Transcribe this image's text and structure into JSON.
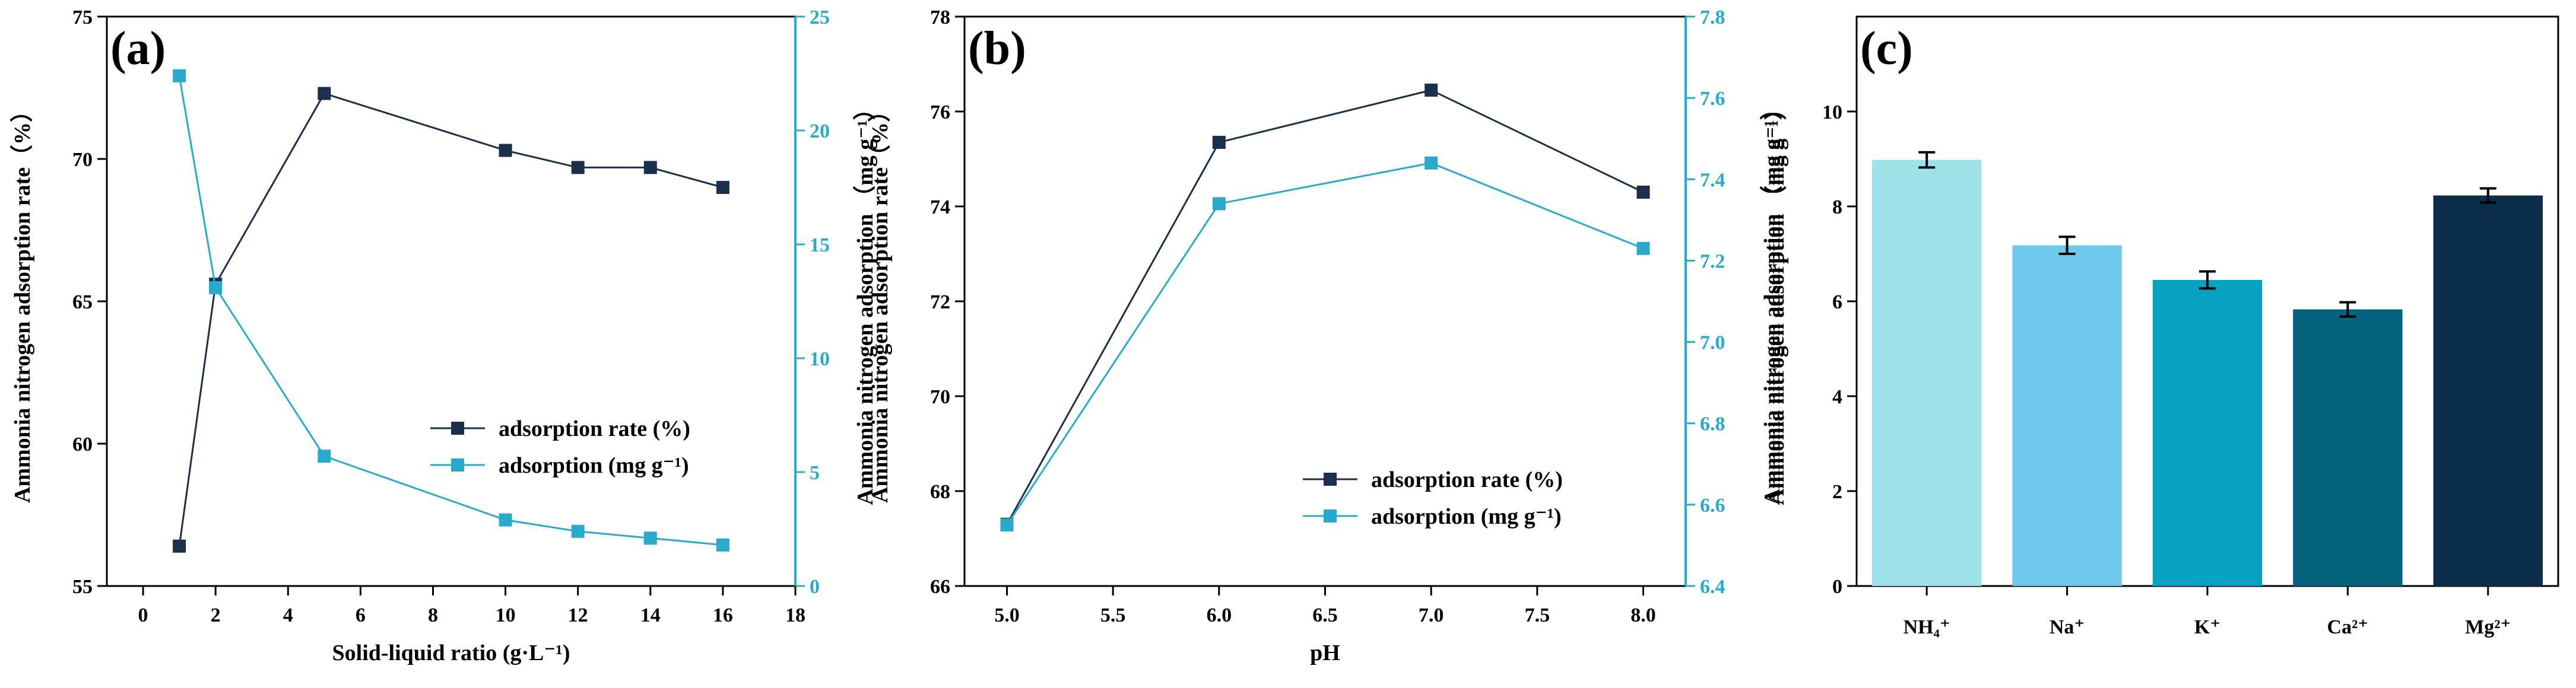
{
  "chart_data": [
    {
      "type": "line",
      "panel_label": "(a)",
      "xlabel": "Solid-liquid ratio (g·L⁻¹)",
      "ylabel": "Ammonia nitrogen adsorption rate（%）",
      "y2label": "Ammonia nitrogen adsorption （mg g⁻¹）",
      "xlim": [
        -1,
        18
      ],
      "ylim": [
        55,
        75
      ],
      "y2lim": [
        0,
        25
      ],
      "xticks": [
        "0",
        "2",
        "4",
        "6",
        "8",
        "10",
        "12",
        "14",
        "16",
        "18"
      ],
      "yticks": [
        "55",
        "60",
        "65",
        "70",
        "75"
      ],
      "y2ticks": [
        "0",
        "5",
        "10",
        "15",
        "20",
        "25"
      ],
      "x": [
        1,
        2,
        5,
        10,
        12,
        14,
        16
      ],
      "series": [
        {
          "name": "adsorption rate  (%)",
          "axis": "left",
          "color": "#1b2f4a",
          "values": [
            56.4,
            65.6,
            72.3,
            70.3,
            69.7,
            69.7,
            69.0
          ]
        },
        {
          "name": "adsorption (mg g⁻¹)",
          "axis": "right",
          "color": "#29a9cc",
          "values": [
            22.4,
            13.1,
            5.7,
            2.9,
            2.4,
            2.1,
            1.8
          ]
        }
      ],
      "legend_position": "bottom-right",
      "grid": false
    },
    {
      "type": "line",
      "panel_label": "(b)",
      "xlabel": "pH",
      "ylabel": "Ammonia nitrogen adsorption rate（%）",
      "y2label": "Ammonia nitrogen adsorption （mg g⁻¹）",
      "xlim": [
        4.8,
        8.2
      ],
      "ylim": [
        66,
        78
      ],
      "y2lim": [
        6.4,
        7.8
      ],
      "xticks": [
        "5.0",
        "5.5",
        "6.0",
        "6.5",
        "7.0",
        "7.5",
        "8.0"
      ],
      "yticks": [
        "66",
        "68",
        "70",
        "72",
        "74",
        "76",
        "78"
      ],
      "y2ticks": [
        "6.4",
        "6.6",
        "6.8",
        "7.0",
        "7.2",
        "7.4",
        "7.6",
        "7.8"
      ],
      "x": [
        5.0,
        6.0,
        7.0,
        8.0
      ],
      "series": [
        {
          "name": "adsorption rate  (%)",
          "axis": "left",
          "color": "#1b2f4a",
          "values": [
            67.3,
            75.35,
            76.45,
            74.3
          ]
        },
        {
          "name": "adsorption (mg g⁻¹)",
          "axis": "right",
          "color": "#29a9cc",
          "values": [
            6.55,
            7.34,
            7.44,
            7.23
          ]
        }
      ],
      "legend_position": "bottom-right",
      "grid": false
    },
    {
      "type": "bar",
      "panel_label": "(c)",
      "xlabel": "",
      "ylabel": "Ammonia nitrogen adsorption （mg g⁻¹）",
      "ylim": [
        0,
        12
      ],
      "yticks": [
        "0",
        "2",
        "4",
        "6",
        "8",
        "10"
      ],
      "categories": [
        "NH₄⁺",
        "Na⁺",
        "K⁺",
        "Ca²⁺",
        "Mg²⁺"
      ],
      "values": [
        8.98,
        7.18,
        6.45,
        5.83,
        8.23
      ],
      "errors": [
        0.16,
        0.18,
        0.18,
        0.15,
        0.15
      ],
      "colors": [
        "#9fe2ec",
        "#6ec8ea",
        "#06a0c0",
        "#06637f",
        "#0b2c4b"
      ],
      "grid": false
    }
  ]
}
